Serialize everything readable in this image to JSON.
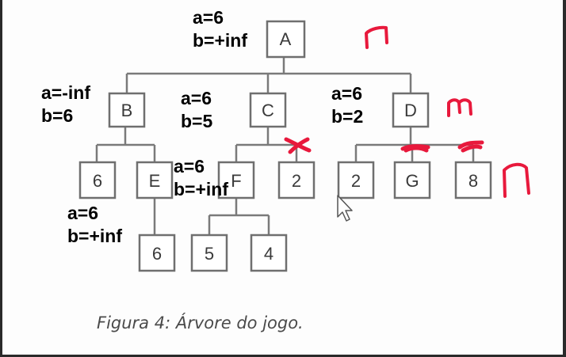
{
  "tree": {
    "nodes": {
      "A": "A",
      "B": "B",
      "C": "C",
      "D": "D",
      "B1": "6",
      "E": "E",
      "F": "F",
      "C2": "2",
      "D1": "2",
      "G": "G",
      "D3": "8",
      "E1": "6",
      "F1": "5",
      "F2": "4"
    },
    "annotations": {
      "A": {
        "a": "a=6",
        "b": "b=+inf"
      },
      "B": {
        "a": "a=-inf",
        "b": "b=6"
      },
      "C": {
        "a": "a=6",
        "b": "b=5"
      },
      "D": {
        "a": "a=6",
        "b": "b=2"
      },
      "F": {
        "a": "a=6",
        "b": "b=+inf"
      },
      "E": {
        "a": "a=6",
        "b": "b=+inf"
      }
    },
    "marks": {
      "level1": "M",
      "level2": "m",
      "level3": "M"
    },
    "caption": "Figura 4: Árvore do jogo."
  },
  "colors": {
    "lines": "#7a7a7a",
    "box": "#6f6f6f",
    "pen": "#e8193c",
    "text": "#000000"
  }
}
